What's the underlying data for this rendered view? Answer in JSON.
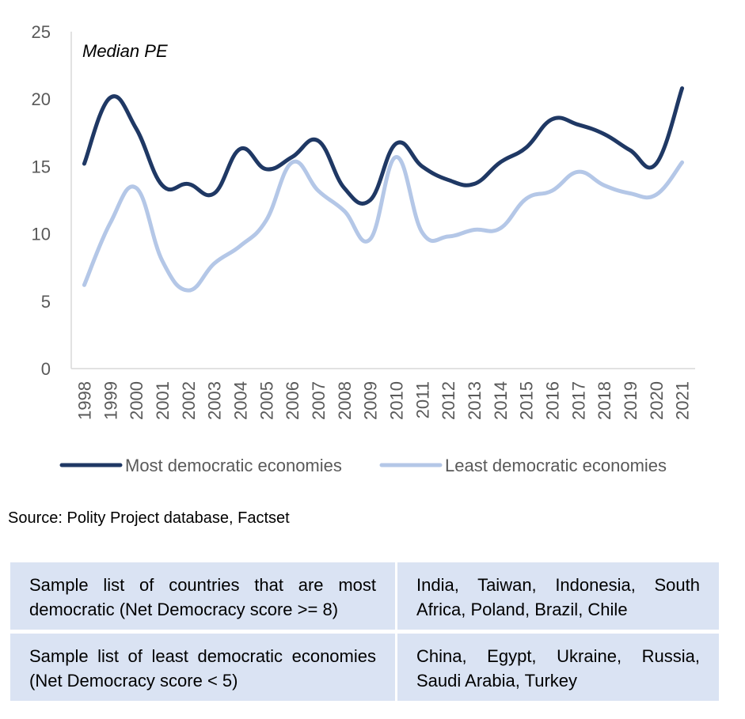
{
  "chart_data": {
    "type": "line",
    "title": "Median PE",
    "xlabel": "",
    "ylabel": "",
    "x": [
      "1998",
      "1999",
      "2000",
      "2001",
      "2002",
      "2003",
      "2004",
      "2005",
      "2006",
      "2007",
      "2008",
      "2009",
      "2010",
      "2011",
      "2012",
      "2013",
      "2014",
      "2015",
      "2016",
      "2017",
      "2018",
      "2019",
      "2020",
      "2021"
    ],
    "ylim": [
      0,
      25
    ],
    "yticks": [
      "0",
      "5",
      "10",
      "15",
      "20",
      "25"
    ],
    "grid": false,
    "legend_position": "bottom",
    "series": [
      {
        "name": "Most democratic economies",
        "color": "#1f3864",
        "values": [
          15.2,
          20.1,
          17.8,
          13.6,
          13.7,
          13.0,
          16.3,
          14.8,
          15.7,
          16.9,
          13.4,
          12.5,
          16.7,
          15.0,
          14.0,
          13.7,
          15.3,
          16.4,
          18.5,
          18.1,
          17.4,
          16.2,
          15.2,
          20.8
        ]
      },
      {
        "name": "Least democratic economies",
        "color": "#b4c7e7",
        "values": [
          6.2,
          10.8,
          13.4,
          8.0,
          5.8,
          7.8,
          9.1,
          11.0,
          15.3,
          13.2,
          11.7,
          9.6,
          15.7,
          10.1,
          9.8,
          10.3,
          10.4,
          12.6,
          13.2,
          14.6,
          13.6,
          13.0,
          12.9,
          15.3
        ]
      }
    ]
  },
  "source_note": "Source: Polity Project database, Factset",
  "table": {
    "rows": [
      {
        "label": "Sample list of countries that are most democratic (Net Democracy score >= 8)",
        "countries": "India, Taiwan, Indonesia, South Africa, Poland, Brazil, Chile"
      },
      {
        "label": "Sample list of least democratic economies (Net Democracy score < 5)",
        "countries": "China, Egypt, Ukraine, Russia, Saudi Arabia, Turkey"
      }
    ]
  }
}
